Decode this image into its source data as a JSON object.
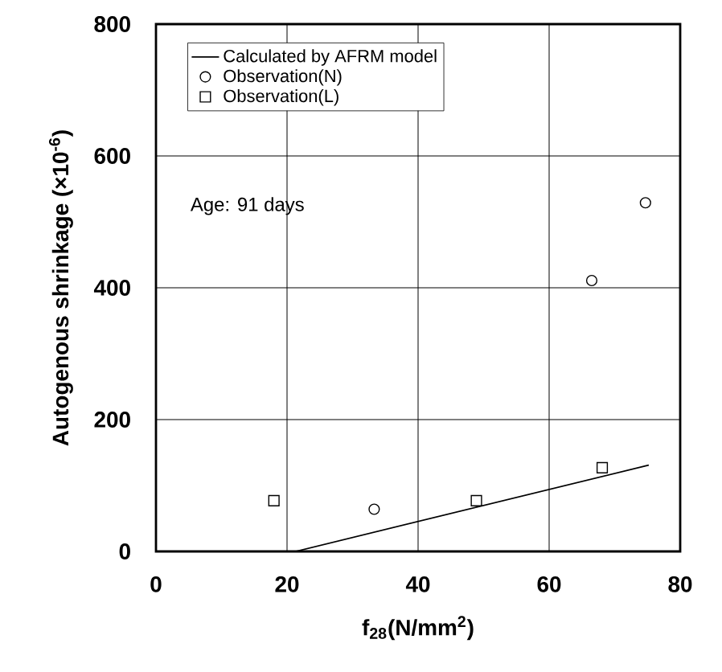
{
  "chart_data": {
    "type": "scatter",
    "xlabel": "f$_{28}$(N/mm$^{2}$)",
    "ylabel": "Autogenous shrinkage (×10$^{-6}$)",
    "annotations": [
      "Age: 91 days"
    ],
    "xlim": [
      0,
      80
    ],
    "ylim": [
      0,
      800
    ],
    "xticks": [
      0,
      20,
      40,
      60,
      80
    ],
    "yticks": [
      0,
      200,
      400,
      600,
      800
    ],
    "grid": true,
    "legend": "top left",
    "series": [
      {
        "name": "Calculated by AFRM model",
        "type": "line",
        "color": "#000000",
        "marker": "none",
        "line_style": "solid",
        "x": [
          21.3,
          75.2
        ],
        "values": [
          0,
          131
        ]
      },
      {
        "name": "Observation(N)",
        "color": "#000000",
        "marker": "circle",
        "x": [
          33.3,
          66.5,
          74.7
        ],
        "values": [
          64,
          411,
          529
        ]
      },
      {
        "name": "Observation(L)",
        "color": "#000000",
        "marker": "square",
        "x": [
          18.0,
          48.9,
          68.1
        ],
        "values": [
          77,
          77,
          127
        ]
      }
    ]
  }
}
